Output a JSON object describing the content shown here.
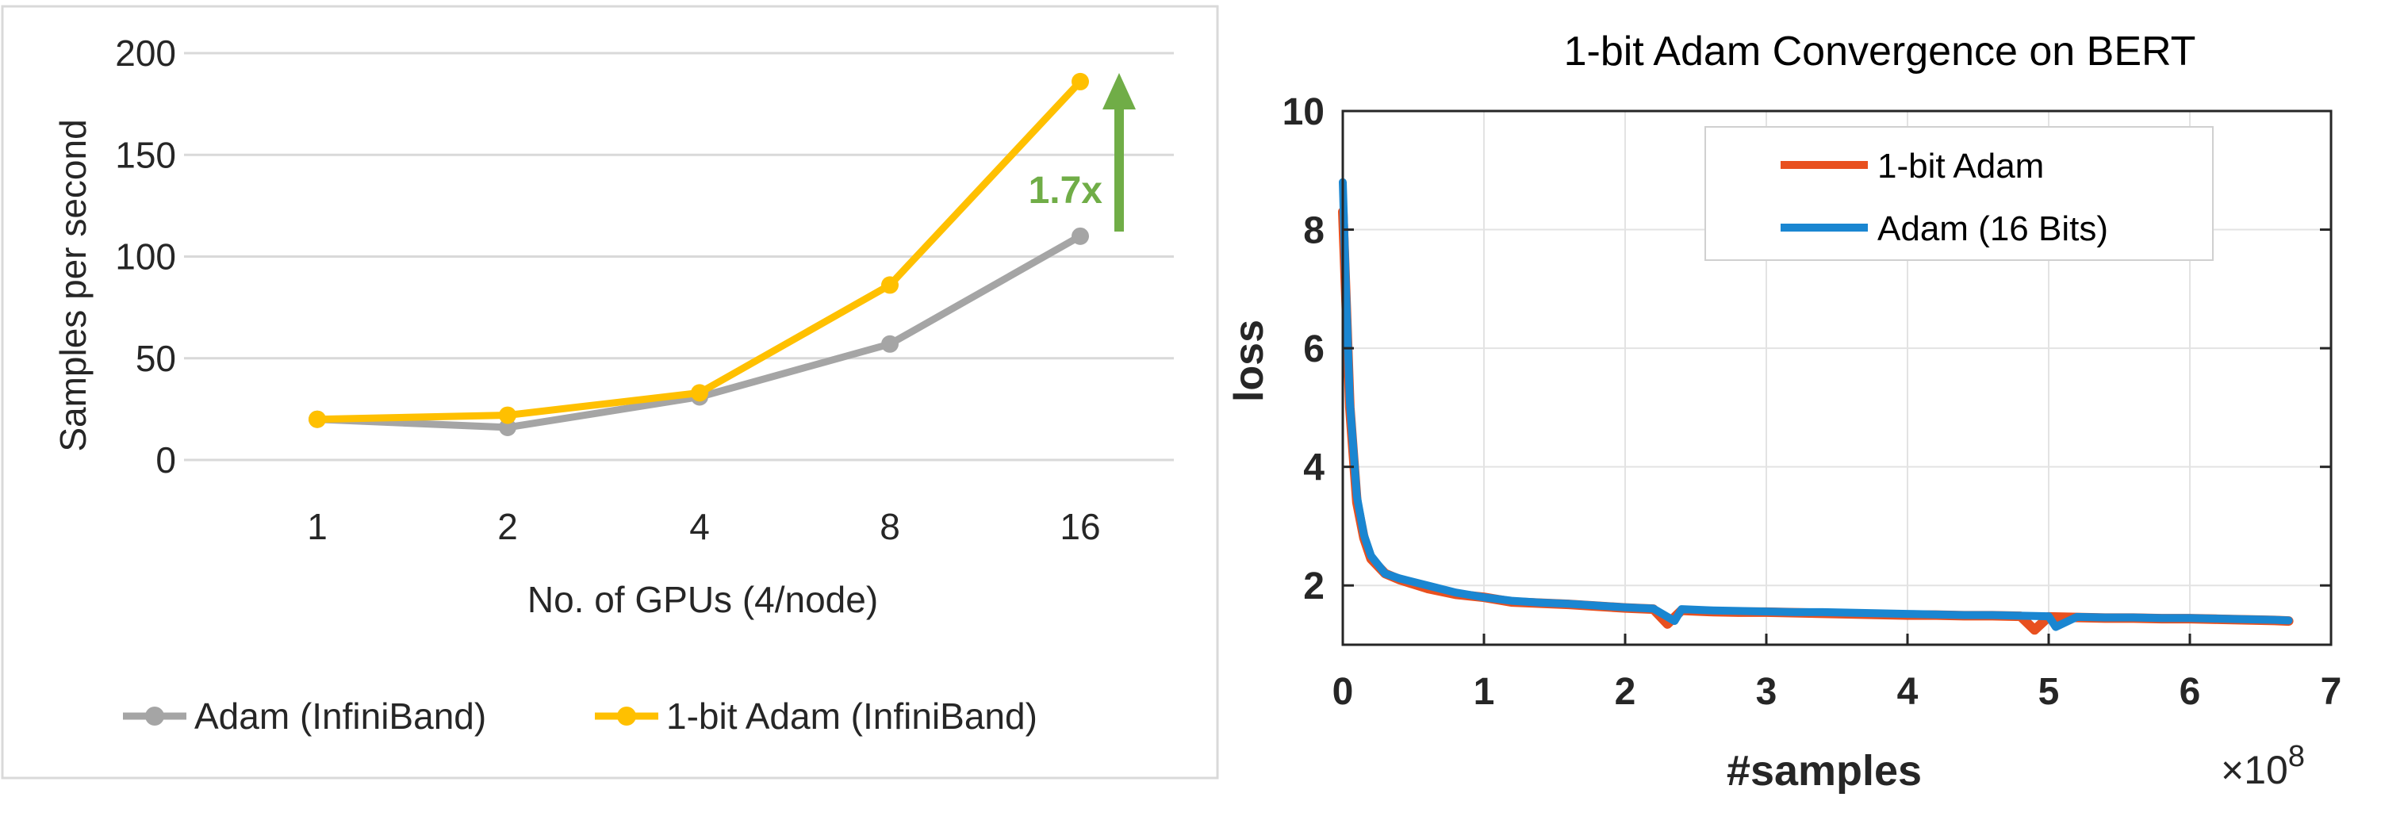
{
  "chart_data": [
    {
      "type": "line",
      "title": "",
      "xlabel": "No. of GPUs (4/node)",
      "ylabel": "Samples per second",
      "categories": [
        "1",
        "2",
        "4",
        "8",
        "16"
      ],
      "ylim": [
        0,
        200
      ],
      "yticks": [
        "0",
        "50",
        "100",
        "150",
        "200"
      ],
      "grid": "horizontal",
      "legend_position": "bottom",
      "series": [
        {
          "name": "Adam (InfiniBand)",
          "color": "#A5A5A5",
          "values": [
            20,
            16,
            31,
            57,
            110
          ]
        },
        {
          "name": "1-bit Adam (InfiniBand)",
          "color": "#FFC000",
          "values": [
            20,
            22,
            33,
            86,
            186
          ]
        }
      ],
      "annotation": {
        "text": "1.7x",
        "color": "#70AD47",
        "arrow": "up"
      }
    },
    {
      "type": "line",
      "title": "1-bit Adam Convergence on BERT",
      "xlabel": "#samples",
      "ylabel": "loss",
      "x_multiplier": "×10",
      "x_multiplier_exp": "8",
      "xlim": [
        0,
        7
      ],
      "ylim": [
        1,
        10
      ],
      "xticks": [
        "0",
        "1",
        "2",
        "3",
        "4",
        "5",
        "6",
        "7"
      ],
      "yticks": [
        "2",
        "4",
        "6",
        "8",
        "10"
      ],
      "grid": "both",
      "legend_position": "top-right",
      "series": [
        {
          "name": "1-bit Adam",
          "color": "#E8501F",
          "x": [
            0,
            0.02,
            0.05,
            0.1,
            0.15,
            0.2,
            0.3,
            0.4,
            0.6,
            0.8,
            1.0,
            1.2,
            1.4,
            1.6,
            1.8,
            2.0,
            2.2,
            2.3,
            2.4,
            2.6,
            2.8,
            3.0,
            3.2,
            3.4,
            3.6,
            3.8,
            4.0,
            4.2,
            4.4,
            4.6,
            4.8,
            4.9,
            5.0,
            5.2,
            5.4,
            5.6,
            5.8,
            6.0,
            6.2,
            6.4,
            6.6,
            6.7
          ],
          "y": [
            8.3,
            7.0,
            5.0,
            3.4,
            2.8,
            2.45,
            2.2,
            2.1,
            1.95,
            1.85,
            1.8,
            1.72,
            1.7,
            1.68,
            1.65,
            1.62,
            1.6,
            1.35,
            1.58,
            1.56,
            1.55,
            1.55,
            1.54,
            1.53,
            1.52,
            1.51,
            1.5,
            1.5,
            1.49,
            1.49,
            1.48,
            1.25,
            1.47,
            1.46,
            1.45,
            1.45,
            1.44,
            1.44,
            1.43,
            1.42,
            1.41,
            1.4
          ]
        },
        {
          "name": "Adam (16 Bits)",
          "color": "#1A86D1",
          "x": [
            0,
            0.02,
            0.05,
            0.1,
            0.15,
            0.2,
            0.3,
            0.4,
            0.6,
            0.8,
            1.0,
            1.2,
            1.4,
            1.6,
            1.8,
            2.0,
            2.2,
            2.35,
            2.4,
            2.6,
            2.8,
            3.0,
            3.2,
            3.4,
            3.6,
            3.8,
            4.0,
            4.2,
            4.4,
            4.6,
            4.8,
            5.0,
            5.05,
            5.2,
            5.4,
            5.6,
            5.8,
            6.0,
            6.2,
            6.4,
            6.6,
            6.7
          ],
          "y": [
            8.8,
            7.2,
            5.1,
            3.5,
            2.85,
            2.5,
            2.2,
            2.12,
            2.0,
            1.88,
            1.8,
            1.74,
            1.71,
            1.69,
            1.66,
            1.63,
            1.61,
            1.4,
            1.6,
            1.58,
            1.57,
            1.56,
            1.55,
            1.55,
            1.54,
            1.53,
            1.52,
            1.51,
            1.5,
            1.5,
            1.49,
            1.48,
            1.3,
            1.47,
            1.46,
            1.46,
            1.45,
            1.45,
            1.44,
            1.43,
            1.42,
            1.41
          ]
        }
      ]
    }
  ]
}
